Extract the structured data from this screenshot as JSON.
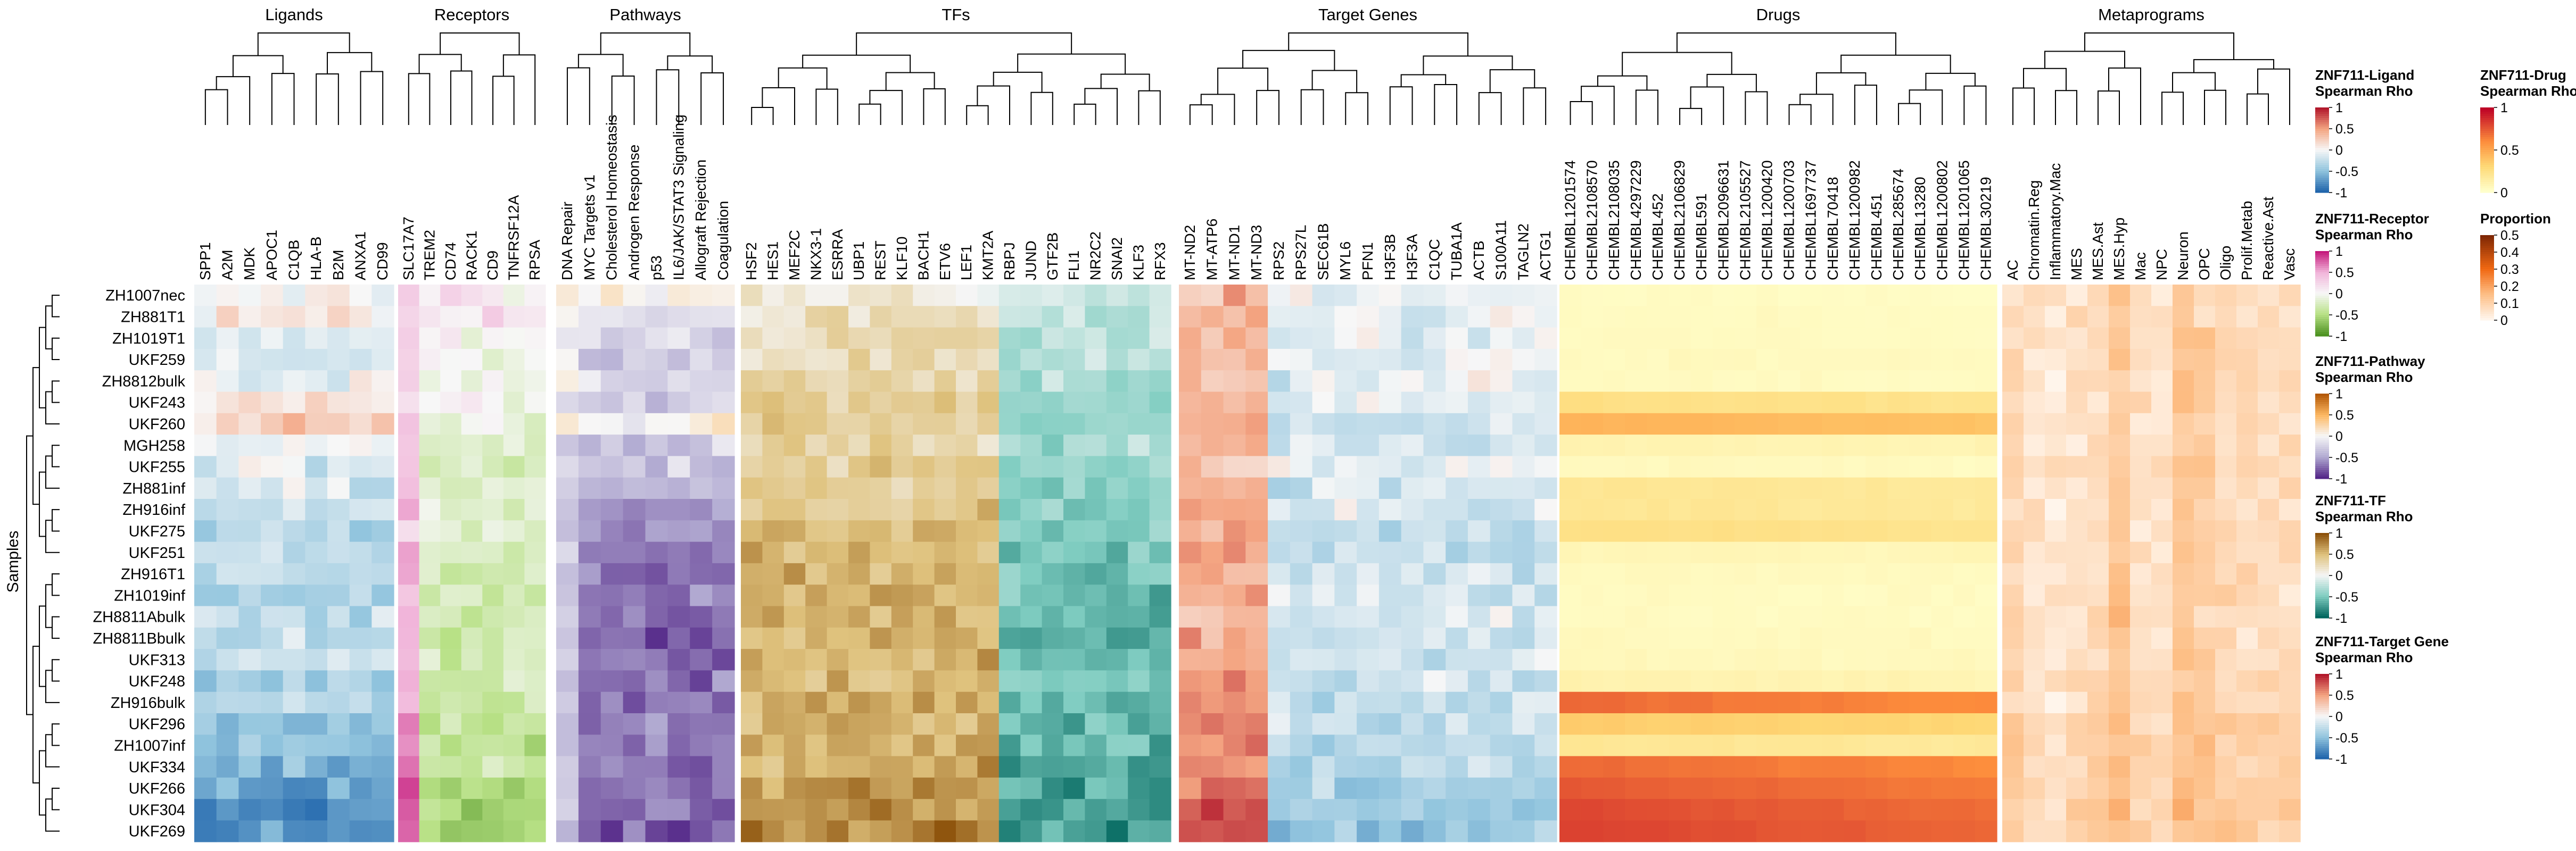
{
  "chart_data": {
    "type": "heatmap",
    "row_axis_label": "Samples",
    "rows": [
      "ZH1007nec",
      "ZH881T1",
      "ZH1019T1",
      "UKF259",
      "ZH8812bulk",
      "UKF243",
      "UKF260",
      "MGH258",
      "UKF255",
      "ZH881inf",
      "ZH916inf",
      "UKF275",
      "UKF251",
      "ZH916T1",
      "ZH1019inf",
      "ZH8811Abulk",
      "ZH8811Bbulk",
      "UKF313",
      "UKF248",
      "ZH916bulk",
      "UKF296",
      "ZH1007inf",
      "UKF334",
      "UKF266",
      "UKF304",
      "UKF269"
    ],
    "blocks": [
      {
        "title": "Ligands",
        "palette": "bwr",
        "columns": [
          "SPP1",
          "A2M",
          "MDK",
          "APOC1",
          "C1QB",
          "HLA-B",
          "B2M",
          "ANXA1",
          "CD99"
        ]
      },
      {
        "title": "Receptors",
        "palette": "pig",
        "columns": [
          "SLC17A7",
          "TREM2",
          "CD74",
          "RACK1",
          "CD9",
          "TNFRSF12A",
          "RPSA"
        ]
      },
      {
        "title": "Pathways",
        "palette": "puor",
        "columns": [
          "DNA Repair",
          "MYC Targets v1",
          "Cholesterol Homeostasis",
          "Androgen Response",
          "p53",
          "IL6/JAK/STAT3 Signaling",
          "Allograft Rejection",
          "Coagulation"
        ]
      },
      {
        "title": "TFs",
        "palette": "brbg",
        "columns": [
          "HSF2",
          "HES1",
          "MEF2C",
          "NKX3-1",
          "ESRRA",
          "UBP1",
          "REST",
          "KLF10",
          "BACH1",
          "ETV6",
          "LEF1",
          "KMT2A",
          "RBPJ",
          "JUND",
          "GTF2B",
          "FLI1",
          "NR2C2",
          "SNAI2",
          "KLF3",
          "RFX3"
        ]
      },
      {
        "title": "Target Genes",
        "palette": "bwr",
        "columns": [
          "MT-ND2",
          "MT-ATP6",
          "MT-ND1",
          "MT-ND3",
          "RPS2",
          "RPS27L",
          "SEC61B",
          "MYL6",
          "PFN1",
          "H3F3B",
          "H3F3A",
          "C1QC",
          "TUBA1A",
          "ACTB",
          "S100A11",
          "TAGLN2",
          "ACTG1"
        ]
      },
      {
        "title": "Drugs",
        "palette": "ylorrd",
        "columns": [
          "CHEMBL1201574",
          "CHEMBL2108570",
          "CHEMBL2108035",
          "CHEMBL4297229",
          "CHEMBL452",
          "CHEMBL2106829",
          "CHEMBL591",
          "CHEMBL2096631",
          "CHEMBL2105527",
          "CHEMBL1200420",
          "CHEMBL1200703",
          "CHEMBL1697737",
          "CHEMBL70418",
          "CHEMBL1200982",
          "CHEMBL451",
          "CHEMBL285674",
          "CHEMBL13280",
          "CHEMBL1200802",
          "CHEMBL1201065",
          "CHEMBL30219"
        ]
      },
      {
        "title": "Metaprograms",
        "palette": "oranges",
        "columns": [
          "AC",
          "Chromatin.Reg",
          "Inflammatory.Mac",
          "MES",
          "MES.Ast",
          "MES.Hyp",
          "Mac",
          "NPC",
          "Neuron",
          "OPC",
          "Oligo",
          "Prolif.Metab",
          "Reactive.Ast",
          "Vasc"
        ]
      }
    ],
    "legends": [
      {
        "title": [
          "ZNF711-Ligand",
          "Spearman Rho"
        ],
        "palette": "bwr",
        "ticks": [
          "1",
          "0.5",
          "0",
          "-0.5",
          "-1"
        ],
        "range": [
          -1,
          1
        ]
      },
      {
        "title": [
          "ZNF711-Receptor",
          "Spearman Rho"
        ],
        "palette": "pig",
        "ticks": [
          "1",
          "0.5",
          "0",
          "-0.5",
          "-1"
        ],
        "range": [
          -1,
          1
        ]
      },
      {
        "title": [
          "ZNF711-Pathway",
          "Spearman Rho"
        ],
        "palette": "puor",
        "ticks": [
          "1",
          "0.5",
          "0",
          "-0.5",
          "-1"
        ],
        "range": [
          -1,
          1
        ]
      },
      {
        "title": [
          "ZNF711-TF",
          "Spearman Rho"
        ],
        "palette": "brbg",
        "ticks": [
          "1",
          "0.5",
          "0",
          "-0.5",
          "-1"
        ],
        "range": [
          -1,
          1
        ]
      },
      {
        "title": [
          "ZNF711-Target Gene",
          "Spearman Rho"
        ],
        "palette": "bwr",
        "ticks": [
          "1",
          "0.5",
          "0",
          "-0.5",
          "-1"
        ],
        "range": [
          -1,
          1
        ]
      },
      {
        "title": [
          "ZNF711-Drug",
          "Spearman Rho"
        ],
        "palette": "ylorrd",
        "ticks": [
          "1",
          "0.5",
          "0"
        ],
        "range": [
          0,
          1
        ]
      },
      {
        "title": [
          "Proportion"
        ],
        "palette": "oranges",
        "ticks": [
          "0.5",
          "0.4",
          "0.3",
          "0.2",
          "0.1",
          "0"
        ],
        "range": [
          0,
          0.5
        ]
      }
    ],
    "row_profiles": {
      "ligands": [
        0.02,
        0.05,
        -0.1,
        -0.15,
        -0.1,
        0.1,
        0.2,
        -0.05,
        -0.1,
        -0.15,
        -0.2,
        -0.3,
        -0.25,
        -0.3,
        -0.35,
        -0.3,
        -0.3,
        -0.2,
        -0.4,
        -0.35,
        -0.45,
        -0.5,
        -0.6,
        -0.7,
        -0.75,
        -0.8
      ],
      "receptors": [
        0.1,
        0.15,
        -0.05,
        -0.1,
        -0.05,
        0,
        -0.1,
        -0.2,
        -0.2,
        -0.15,
        -0.2,
        -0.2,
        -0.25,
        -0.3,
        -0.3,
        -0.3,
        -0.3,
        -0.3,
        -0.3,
        -0.35,
        -0.35,
        -0.4,
        -0.45,
        -0.55,
        -0.6,
        -0.65
      ],
      "pathways": [
        0.05,
        -0.2,
        -0.25,
        -0.35,
        -0.2,
        -0.25,
        0.05,
        -0.3,
        -0.35,
        -0.4,
        -0.5,
        -0.6,
        -0.65,
        -0.7,
        -0.7,
        -0.75,
        -0.8,
        -0.75,
        -0.7,
        -0.7,
        -0.7,
        -0.65,
        -0.7,
        -0.7,
        -0.75,
        -0.8
      ],
      "tfs": [
        0.1,
        0.2,
        0.25,
        0.25,
        0.3,
        0.35,
        0.4,
        0.35,
        0.4,
        0.45,
        0.45,
        0.5,
        0.5,
        0.55,
        0.55,
        0.6,
        0.6,
        0.55,
        0.5,
        0.6,
        0.6,
        0.6,
        0.65,
        0.7,
        0.7,
        0.75
      ],
      "targets": [
        0.1,
        0.1,
        0.1,
        0.1,
        0.1,
        0.15,
        0.25,
        -0.2,
        -0.05,
        0.2,
        0.2,
        0.3,
        0.3,
        0.2,
        0.2,
        0.15,
        0.2,
        0.2,
        0.3,
        0.3,
        0.3,
        0.35,
        0.35,
        0.45,
        0.5,
        0.55
      ],
      "drugs": [
        0.03,
        0.04,
        0.04,
        0.05,
        0.04,
        0.25,
        0.45,
        0.1,
        0.05,
        0.2,
        0.2,
        0.25,
        0.08,
        0.05,
        0.04,
        0.04,
        0.05,
        0.06,
        0.1,
        0.7,
        0.35,
        0.2,
        0.7,
        0.75,
        0.8,
        0.82
      ]
    },
    "metaprogram_weights": [
      0.08,
      0.04,
      0.03,
      0.06,
      0.07,
      0.12,
      0.06,
      0.05,
      0.12,
      0.1,
      0.08,
      0.07,
      0.06,
      0.07
    ]
  }
}
